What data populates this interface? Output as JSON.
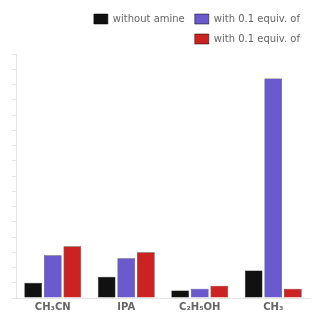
{
  "chart_data": {
    "type": "bar",
    "categories": [
      "CH₃CN",
      "IPA",
      "C₂H₅OH",
      "CH₃"
    ],
    "series": [
      {
        "name": "without amine",
        "color": "#111111",
        "values": [
          5,
          7,
          2.5,
          9
        ]
      },
      {
        "name": "with 0.1 equiv. of",
        "color": "#6a5acd",
        "values": [
          14,
          13,
          3,
          72
        ]
      },
      {
        "name": "with 0.1 equiv. of",
        "color": "#cc2222",
        "values": [
          17,
          15,
          4,
          3
        ]
      }
    ],
    "ylim": [
      0,
      80
    ],
    "yticks": [
      0,
      5,
      10,
      15,
      20,
      25,
      30,
      35,
      40,
      45,
      50,
      55,
      60,
      65,
      70,
      75,
      80
    ],
    "tick_labels": "x",
    "grid": false,
    "legend": "upper right"
  }
}
